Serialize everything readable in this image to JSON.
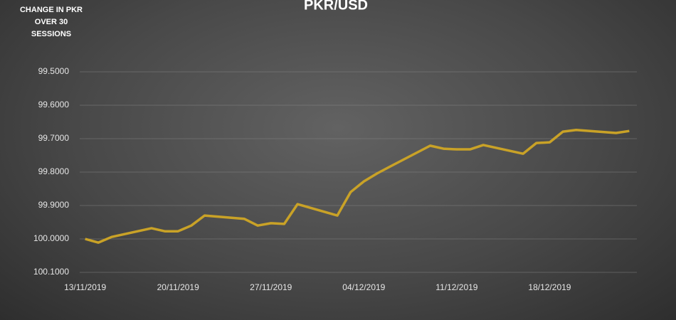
{
  "chart_data": {
    "type": "line",
    "title": "PKR/USD",
    "y_label": "CHANGE IN PKR OVER 30 SESSIONS",
    "x": [
      "2019-11-13",
      "2019-11-14",
      "2019-11-15",
      "2019-11-18",
      "2019-11-19",
      "2019-11-20",
      "2019-11-21",
      "2019-11-22",
      "2019-11-25",
      "2019-11-26",
      "2019-11-27",
      "2019-11-28",
      "2019-11-29",
      "2019-12-02",
      "2019-12-03",
      "2019-12-04",
      "2019-12-05",
      "2019-12-06",
      "2019-12-09",
      "2019-12-10",
      "2019-12-11",
      "2019-12-12",
      "2019-12-13",
      "2019-12-16",
      "2019-12-17",
      "2019-12-18",
      "2019-12-19",
      "2019-12-20",
      "2019-12-23",
      "2019-12-24"
    ],
    "series": [
      {
        "name": "PKR/USD",
        "color": "#c9a227",
        "values": [
          100.0,
          100.011,
          99.994,
          99.968,
          99.977,
          99.977,
          99.96,
          99.93,
          99.94,
          99.96,
          99.953,
          99.955,
          99.896,
          99.93,
          99.86,
          99.828,
          99.804,
          99.783,
          99.721,
          99.73,
          99.732,
          99.732,
          99.719,
          99.745,
          99.713,
          99.711,
          99.679,
          99.674,
          99.683,
          99.677
        ]
      }
    ],
    "xlim": [
      "2019-11-12",
      "2019-12-25"
    ],
    "xticks": [
      {
        "value": "2019-11-13",
        "label": "13/11/2019"
      },
      {
        "value": "2019-11-20",
        "label": "20/11/2019"
      },
      {
        "value": "2019-11-27",
        "label": "27/11/2019"
      },
      {
        "value": "2019-12-04",
        "label": "04/12/2019"
      },
      {
        "value": "2019-12-11",
        "label": "11/12/2019"
      },
      {
        "value": "2019-12-18",
        "label": "18/12/2019"
      }
    ],
    "ylim": [
      99.5,
      100.1
    ],
    "y_inverted": true,
    "yticks": [
      {
        "value": 99.5,
        "label": "99.5000"
      },
      {
        "value": 99.6,
        "label": "99.6000"
      },
      {
        "value": 99.7,
        "label": "99.7000"
      },
      {
        "value": 99.8,
        "label": "99.8000"
      },
      {
        "value": 99.9,
        "label": "99.9000"
      },
      {
        "value": 100.0,
        "label": "100.0000"
      },
      {
        "value": 100.1,
        "label": "100.1000"
      }
    ],
    "grid": true
  }
}
